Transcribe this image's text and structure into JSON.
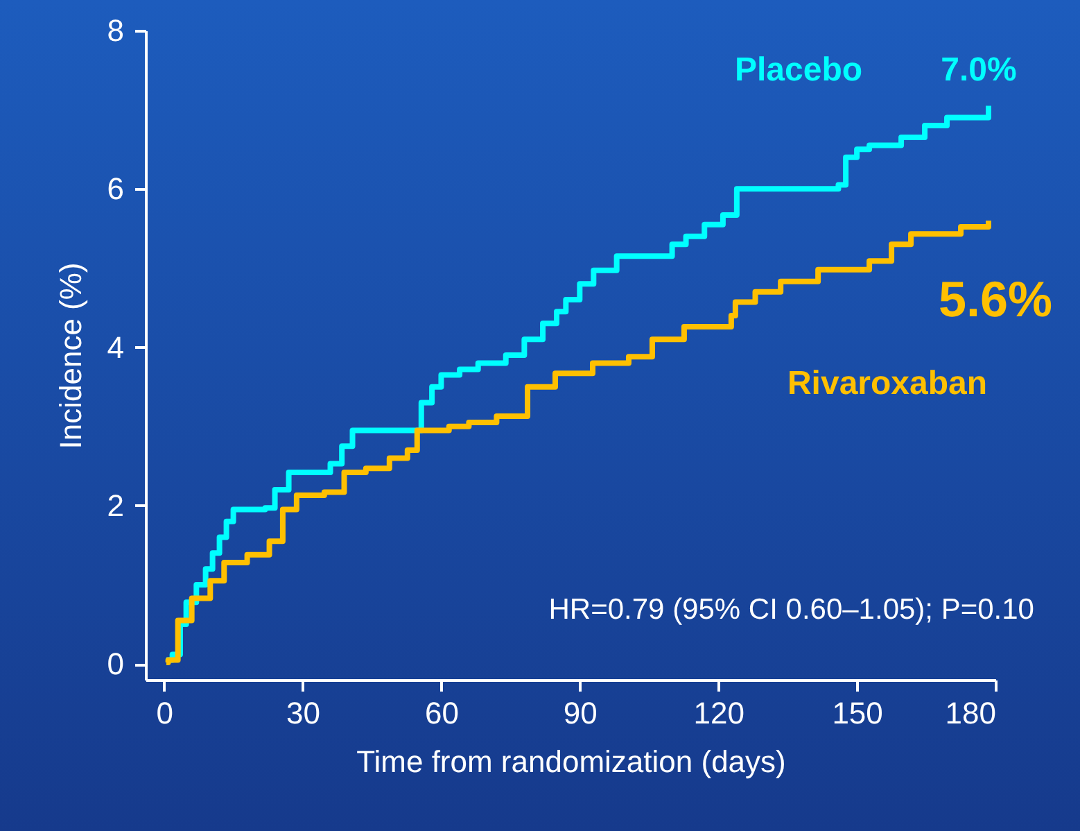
{
  "chart_data": {
    "type": "step",
    "xlabel": "Time from randomization (days)",
    "ylabel": "Incidence (%)",
    "xlim": [
      -4,
      180
    ],
    "xticks": [
      0,
      30,
      60,
      90,
      120,
      150,
      180
    ],
    "ylim": [
      -0.2,
      8
    ],
    "yticks": [
      0,
      2,
      4,
      6,
      8
    ],
    "grid": false,
    "series": [
      {
        "name": "Placebo",
        "color": "#00ffff",
        "x": [
          0.5,
          1.8,
          3.5,
          4.8,
          7,
          9,
          10.5,
          12,
          13.5,
          15,
          21.9,
          24,
          27,
          36,
          38.5,
          40.8,
          53.9,
          55.7,
          58,
          60,
          64,
          68,
          74,
          78,
          82,
          85,
          87,
          90,
          93,
          98,
          108,
          110,
          113,
          117,
          121,
          124,
          146,
          147.6,
          150,
          152.7,
          159.6,
          164.7,
          169.5,
          178,
          178.5
        ],
        "values": [
          0.05,
          0.12,
          0.5,
          0.78,
          1.0,
          1.2,
          1.4,
          1.6,
          1.8,
          1.95,
          1.97,
          2.2,
          2.42,
          2.53,
          2.75,
          2.95,
          2.95,
          3.3,
          3.5,
          3.65,
          3.72,
          3.8,
          3.9,
          4.1,
          4.3,
          4.45,
          4.6,
          4.8,
          4.97,
          5.15,
          5.15,
          5.3,
          5.4,
          5.55,
          5.67,
          6.0,
          6.05,
          6.4,
          6.5,
          6.55,
          6.65,
          6.8,
          6.9,
          6.9,
          7.05
        ]
      },
      {
        "name": "Rivaroxaban",
        "color": "#ffc000",
        "x": [
          0.5,
          0.9,
          3,
          6,
          10,
          13,
          18,
          22.8,
          25.7,
          28.7,
          34.7,
          39,
          43.7,
          48.8,
          52.7,
          54.8,
          61.7,
          66,
          72,
          78.7,
          84.7,
          92.8,
          100.6,
          105.7,
          112.6,
          122.8,
          123.7,
          128,
          133.5,
          141.6,
          152.7,
          157.5,
          161.7,
          172.5,
          178.5
        ],
        "values": [
          0.02,
          0.05,
          0.55,
          0.83,
          1.05,
          1.28,
          1.38,
          1.55,
          1.95,
          2.13,
          2.17,
          2.42,
          2.47,
          2.6,
          2.7,
          2.95,
          3.0,
          3.05,
          3.13,
          3.5,
          3.67,
          3.8,
          3.88,
          4.1,
          4.26,
          4.4,
          4.57,
          4.7,
          4.83,
          4.98,
          5.09,
          5.3,
          5.43,
          5.52,
          5.6
        ]
      }
    ],
    "annotations": [
      {
        "text": "7.0%",
        "x": 178.5,
        "y": 7.05
      },
      {
        "text": "5.6%",
        "x": 178.5,
        "y": 5.6
      },
      "HR=0.79 (95% CI 0.60–1.05); P=0.10"
    ]
  }
}
